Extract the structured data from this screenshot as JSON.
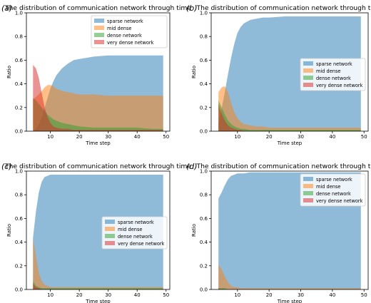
{
  "colors": {
    "sparse": "#1f77b4",
    "mid": "#ff7f0e",
    "dense": "#2ca02c",
    "very": "#d62728"
  },
  "panels": [
    {
      "letter": "(a)"
    },
    {
      "letter": "(b)"
    },
    {
      "letter": "(c)"
    },
    {
      "letter": "(d)"
    }
  ],
  "chart_data": [
    {
      "type": "area",
      "title": "The distribution of communication network through time",
      "xlabel": "Time step",
      "ylabel": "Ratio",
      "xlim": [
        1.7,
        51.3
      ],
      "ylim": [
        0,
        1.0
      ],
      "xticks": [
        10,
        20,
        30,
        40,
        50
      ],
      "yticks": [
        0.0,
        0.2,
        0.4,
        0.6,
        0.8,
        1.0
      ],
      "legend_position": "upper-right",
      "x": [
        4,
        5,
        6,
        7,
        8,
        9,
        10,
        11,
        12,
        14,
        16,
        18,
        20,
        25,
        30,
        35,
        40,
        45,
        49
      ],
      "series": [
        {
          "name": "sparse network",
          "key": "sparse",
          "values": [
            0.0,
            0.02,
            0.06,
            0.12,
            0.2,
            0.28,
            0.36,
            0.42,
            0.47,
            0.53,
            0.57,
            0.6,
            0.61,
            0.63,
            0.64,
            0.64,
            0.64,
            0.64,
            0.64
          ]
        },
        {
          "name": "mid dense",
          "key": "mid",
          "values": [
            0.27,
            0.29,
            0.31,
            0.34,
            0.37,
            0.39,
            0.39,
            0.38,
            0.36,
            0.34,
            0.33,
            0.32,
            0.31,
            0.31,
            0.3,
            0.3,
            0.3,
            0.3,
            0.3
          ]
        },
        {
          "name": "dense network",
          "key": "dense",
          "values": [
            0.28,
            0.26,
            0.23,
            0.2,
            0.17,
            0.14,
            0.12,
            0.1,
            0.09,
            0.07,
            0.06,
            0.05,
            0.04,
            0.03,
            0.03,
            0.03,
            0.03,
            0.02,
            0.02
          ]
        },
        {
          "name": "very dense network",
          "key": "very",
          "values": [
            0.56,
            0.53,
            0.45,
            0.32,
            0.2,
            0.12,
            0.07,
            0.04,
            0.03,
            0.02,
            0.02,
            0.01,
            0.01,
            0.01,
            0.01,
            0.01,
            0.01,
            0.01,
            0.01
          ]
        }
      ]
    },
    {
      "type": "area",
      "title": "The distribution of communication network through time",
      "xlabel": "Time step",
      "ylabel": "Ratio",
      "xlim": [
        1.7,
        51.3
      ],
      "ylim": [
        0,
        1.0
      ],
      "xticks": [
        10,
        20,
        30,
        40,
        50
      ],
      "yticks": [
        0.0,
        0.2,
        0.4,
        0.6,
        0.8,
        1.0
      ],
      "legend_position": "center-right",
      "x": [
        4,
        5,
        6,
        7,
        8,
        9,
        10,
        11,
        12,
        14,
        16,
        18,
        20,
        25,
        30,
        35,
        40,
        45,
        49
      ],
      "series": [
        {
          "name": "sparse network",
          "key": "sparse",
          "values": [
            0.07,
            0.19,
            0.33,
            0.48,
            0.62,
            0.74,
            0.83,
            0.88,
            0.91,
            0.94,
            0.95,
            0.96,
            0.96,
            0.97,
            0.97,
            0.97,
            0.97,
            0.97,
            0.97
          ]
        },
        {
          "name": "mid dense",
          "key": "mid",
          "values": [
            0.33,
            0.37,
            0.38,
            0.33,
            0.24,
            0.16,
            0.11,
            0.08,
            0.06,
            0.05,
            0.04,
            0.04,
            0.03,
            0.03,
            0.03,
            0.03,
            0.03,
            0.03,
            0.03
          ]
        },
        {
          "name": "dense network",
          "key": "dense",
          "values": [
            0.26,
            0.2,
            0.14,
            0.09,
            0.06,
            0.04,
            0.03,
            0.02,
            0.02,
            0.01,
            0.01,
            0.01,
            0.01,
            0.01,
            0.01,
            0.01,
            0.01,
            0.01,
            0.01
          ]
        },
        {
          "name": "very dense network",
          "key": "very",
          "values": [
            0.23,
            0.15,
            0.09,
            0.05,
            0.03,
            0.02,
            0.01,
            0.01,
            0.0,
            0.0,
            0.0,
            0.0,
            0.0,
            0.0,
            0.0,
            0.0,
            0.0,
            0.0,
            0.0
          ]
        }
      ]
    },
    {
      "type": "area",
      "title": "The distribution of communication network through time",
      "xlabel": "Time step",
      "ylabel": "Ratio",
      "xlim": [
        1.7,
        51.3
      ],
      "ylim": [
        0,
        1.0
      ],
      "xticks": [
        10,
        20,
        30,
        40,
        50
      ],
      "yticks": [
        0.0,
        0.2,
        0.4,
        0.6,
        0.8,
        1.0
      ],
      "legend_position": "center-right",
      "x": [
        4,
        5,
        6,
        7,
        8,
        9,
        10,
        11,
        12,
        14,
        16,
        18,
        20,
        25,
        30,
        35,
        40,
        45,
        49
      ],
      "series": [
        {
          "name": "sparse network",
          "key": "sparse",
          "values": [
            0.44,
            0.66,
            0.82,
            0.91,
            0.95,
            0.96,
            0.97,
            0.97,
            0.97,
            0.97,
            0.97,
            0.97,
            0.97,
            0.97,
            0.97,
            0.97,
            0.97,
            0.97,
            0.97
          ]
        },
        {
          "name": "mid dense",
          "key": "mid",
          "values": [
            0.43,
            0.28,
            0.14,
            0.07,
            0.04,
            0.03,
            0.02,
            0.02,
            0.02,
            0.02,
            0.02,
            0.02,
            0.02,
            0.02,
            0.02,
            0.02,
            0.02,
            0.02,
            0.02
          ]
        },
        {
          "name": "dense network",
          "key": "dense",
          "values": [
            0.07,
            0.03,
            0.02,
            0.01,
            0.01,
            0.01,
            0.01,
            0.01,
            0.01,
            0.01,
            0.01,
            0.01,
            0.01,
            0.01,
            0.01,
            0.01,
            0.01,
            0.01,
            0.01
          ]
        },
        {
          "name": "very dense network",
          "key": "very",
          "values": [
            0.05,
            0.02,
            0.01,
            0.0,
            0.0,
            0.0,
            0.0,
            0.0,
            0.0,
            0.0,
            0.0,
            0.0,
            0.0,
            0.0,
            0.0,
            0.0,
            0.0,
            0.0,
            0.0
          ]
        }
      ]
    },
    {
      "type": "area",
      "title": "The distribution of communication network through time",
      "xlabel": "Time step",
      "ylabel": "Ratio",
      "xlim": [
        1.7,
        51.3
      ],
      "ylim": [
        0,
        1.0
      ],
      "xticks": [
        10,
        20,
        30,
        40,
        50
      ],
      "yticks": [
        0.0,
        0.2,
        0.4,
        0.6,
        0.8,
        1.0
      ],
      "legend_position": "upper-right",
      "x": [
        4,
        5,
        6,
        7,
        8,
        9,
        10,
        11,
        12,
        14,
        16,
        18,
        20,
        25,
        30,
        35,
        40,
        45,
        49
      ],
      "series": [
        {
          "name": "sparse network",
          "key": "sparse",
          "values": [
            0.77,
            0.82,
            0.88,
            0.93,
            0.96,
            0.97,
            0.98,
            0.98,
            0.98,
            0.99,
            0.99,
            0.99,
            0.99,
            0.99,
            0.99,
            0.99,
            0.99,
            0.99,
            0.99
          ]
        },
        {
          "name": "mid dense",
          "key": "mid",
          "values": [
            0.21,
            0.17,
            0.11,
            0.06,
            0.03,
            0.02,
            0.02,
            0.01,
            0.01,
            0.01,
            0.01,
            0.01,
            0.01,
            0.01,
            0.01,
            0.01,
            0.01,
            0.01,
            0.01
          ]
        },
        {
          "name": "dense network",
          "key": "dense",
          "values": [
            0.01,
            0.01,
            0.01,
            0.0,
            0.0,
            0.0,
            0.0,
            0.0,
            0.0,
            0.0,
            0.0,
            0.0,
            0.0,
            0.0,
            0.0,
            0.0,
            0.0,
            0.0,
            0.0
          ]
        },
        {
          "name": "very dense network",
          "key": "very",
          "values": [
            0.01,
            0.0,
            0.0,
            0.0,
            0.0,
            0.0,
            0.0,
            0.0,
            0.0,
            0.0,
            0.0,
            0.0,
            0.0,
            0.0,
            0.0,
            0.0,
            0.0,
            0.0,
            0.0
          ]
        }
      ]
    }
  ]
}
